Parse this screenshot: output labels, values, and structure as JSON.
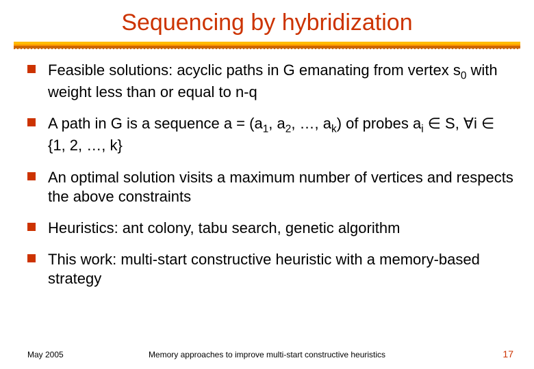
{
  "title": "Sequencing by hybridization",
  "colors": {
    "title_color": "#cc3300",
    "bullet_color": "#cc3300",
    "body_text": "#000000",
    "background": "#ffffff",
    "underline_top": "#ffbb00",
    "underline_mid": "#ff9900",
    "underline_bot": "#cc6600",
    "page_number_color": "#cc3300"
  },
  "typography": {
    "title_fontsize": 34,
    "body_fontsize": 22,
    "footer_fontsize": 12,
    "title_font": "Gill Sans",
    "body_font": "Gill Sans"
  },
  "bullets": [
    {
      "html": "Feasible solutions: acyclic paths in G emanating from vertex s<sub>0</sub> with weight less than or equal to n-q"
    },
    {
      "html": "A path in G is a sequence a = (a<sub>1</sub>, a<sub>2</sub>, …, a<sub>k</sub>) of probes a<sub>i</sub> ∈ S, ∀i ∈ {1, 2, …, k}"
    },
    {
      "html": "An optimal solution visits a maximum number of vertices and respects the above constraints"
    },
    {
      "html": "Heuristics: ant colony, tabu search, genetic algorithm"
    },
    {
      "html": "This work: multi-start constructive heuristic with a memory-based strategy"
    }
  ],
  "footer": {
    "date": "May 2005",
    "center": "Memory approaches to improve multi-start constructive heuristics",
    "page": "17"
  }
}
